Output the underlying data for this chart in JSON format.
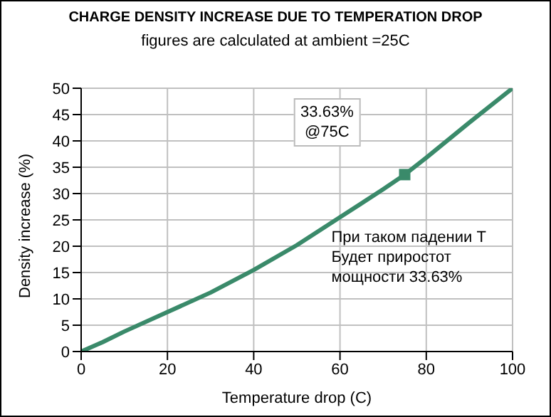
{
  "chart_data": {
    "type": "line",
    "title": "CHARGE DENSITY INCREASE DUE TO TEMPERATION DROP",
    "subtitle": "figures are calculated at ambient =25C",
    "xlabel": "Temperature drop (C)",
    "ylabel": "Density increase (%)",
    "xlim": [
      0,
      100
    ],
    "xticks": [
      0,
      20,
      40,
      60,
      80,
      100
    ],
    "ylim": [
      0,
      50
    ],
    "yticks": [
      0,
      5,
      10,
      15,
      20,
      25,
      30,
      35,
      40,
      45,
      50
    ],
    "grid": true,
    "series": [
      {
        "color": "#3a8a6a",
        "marker": "none",
        "x": [
          0,
          5,
          10,
          20,
          30,
          40,
          50,
          60,
          70,
          75,
          80,
          90,
          100
        ],
        "values": [
          0,
          1.8,
          3.8,
          7.5,
          11.2,
          15.5,
          20.2,
          25.5,
          30.8,
          33.6,
          36.8,
          43.5,
          50
        ]
      },
      {
        "type": "scatter",
        "color": "#3a8a6a",
        "marker": "square",
        "x": [
          75
        ],
        "values": [
          33.6
        ]
      }
    ],
    "annotations": [
      "33.63%\n@75C",
      "При таком падении Т\nБудет приростот\nмощности 33.63%"
    ]
  }
}
